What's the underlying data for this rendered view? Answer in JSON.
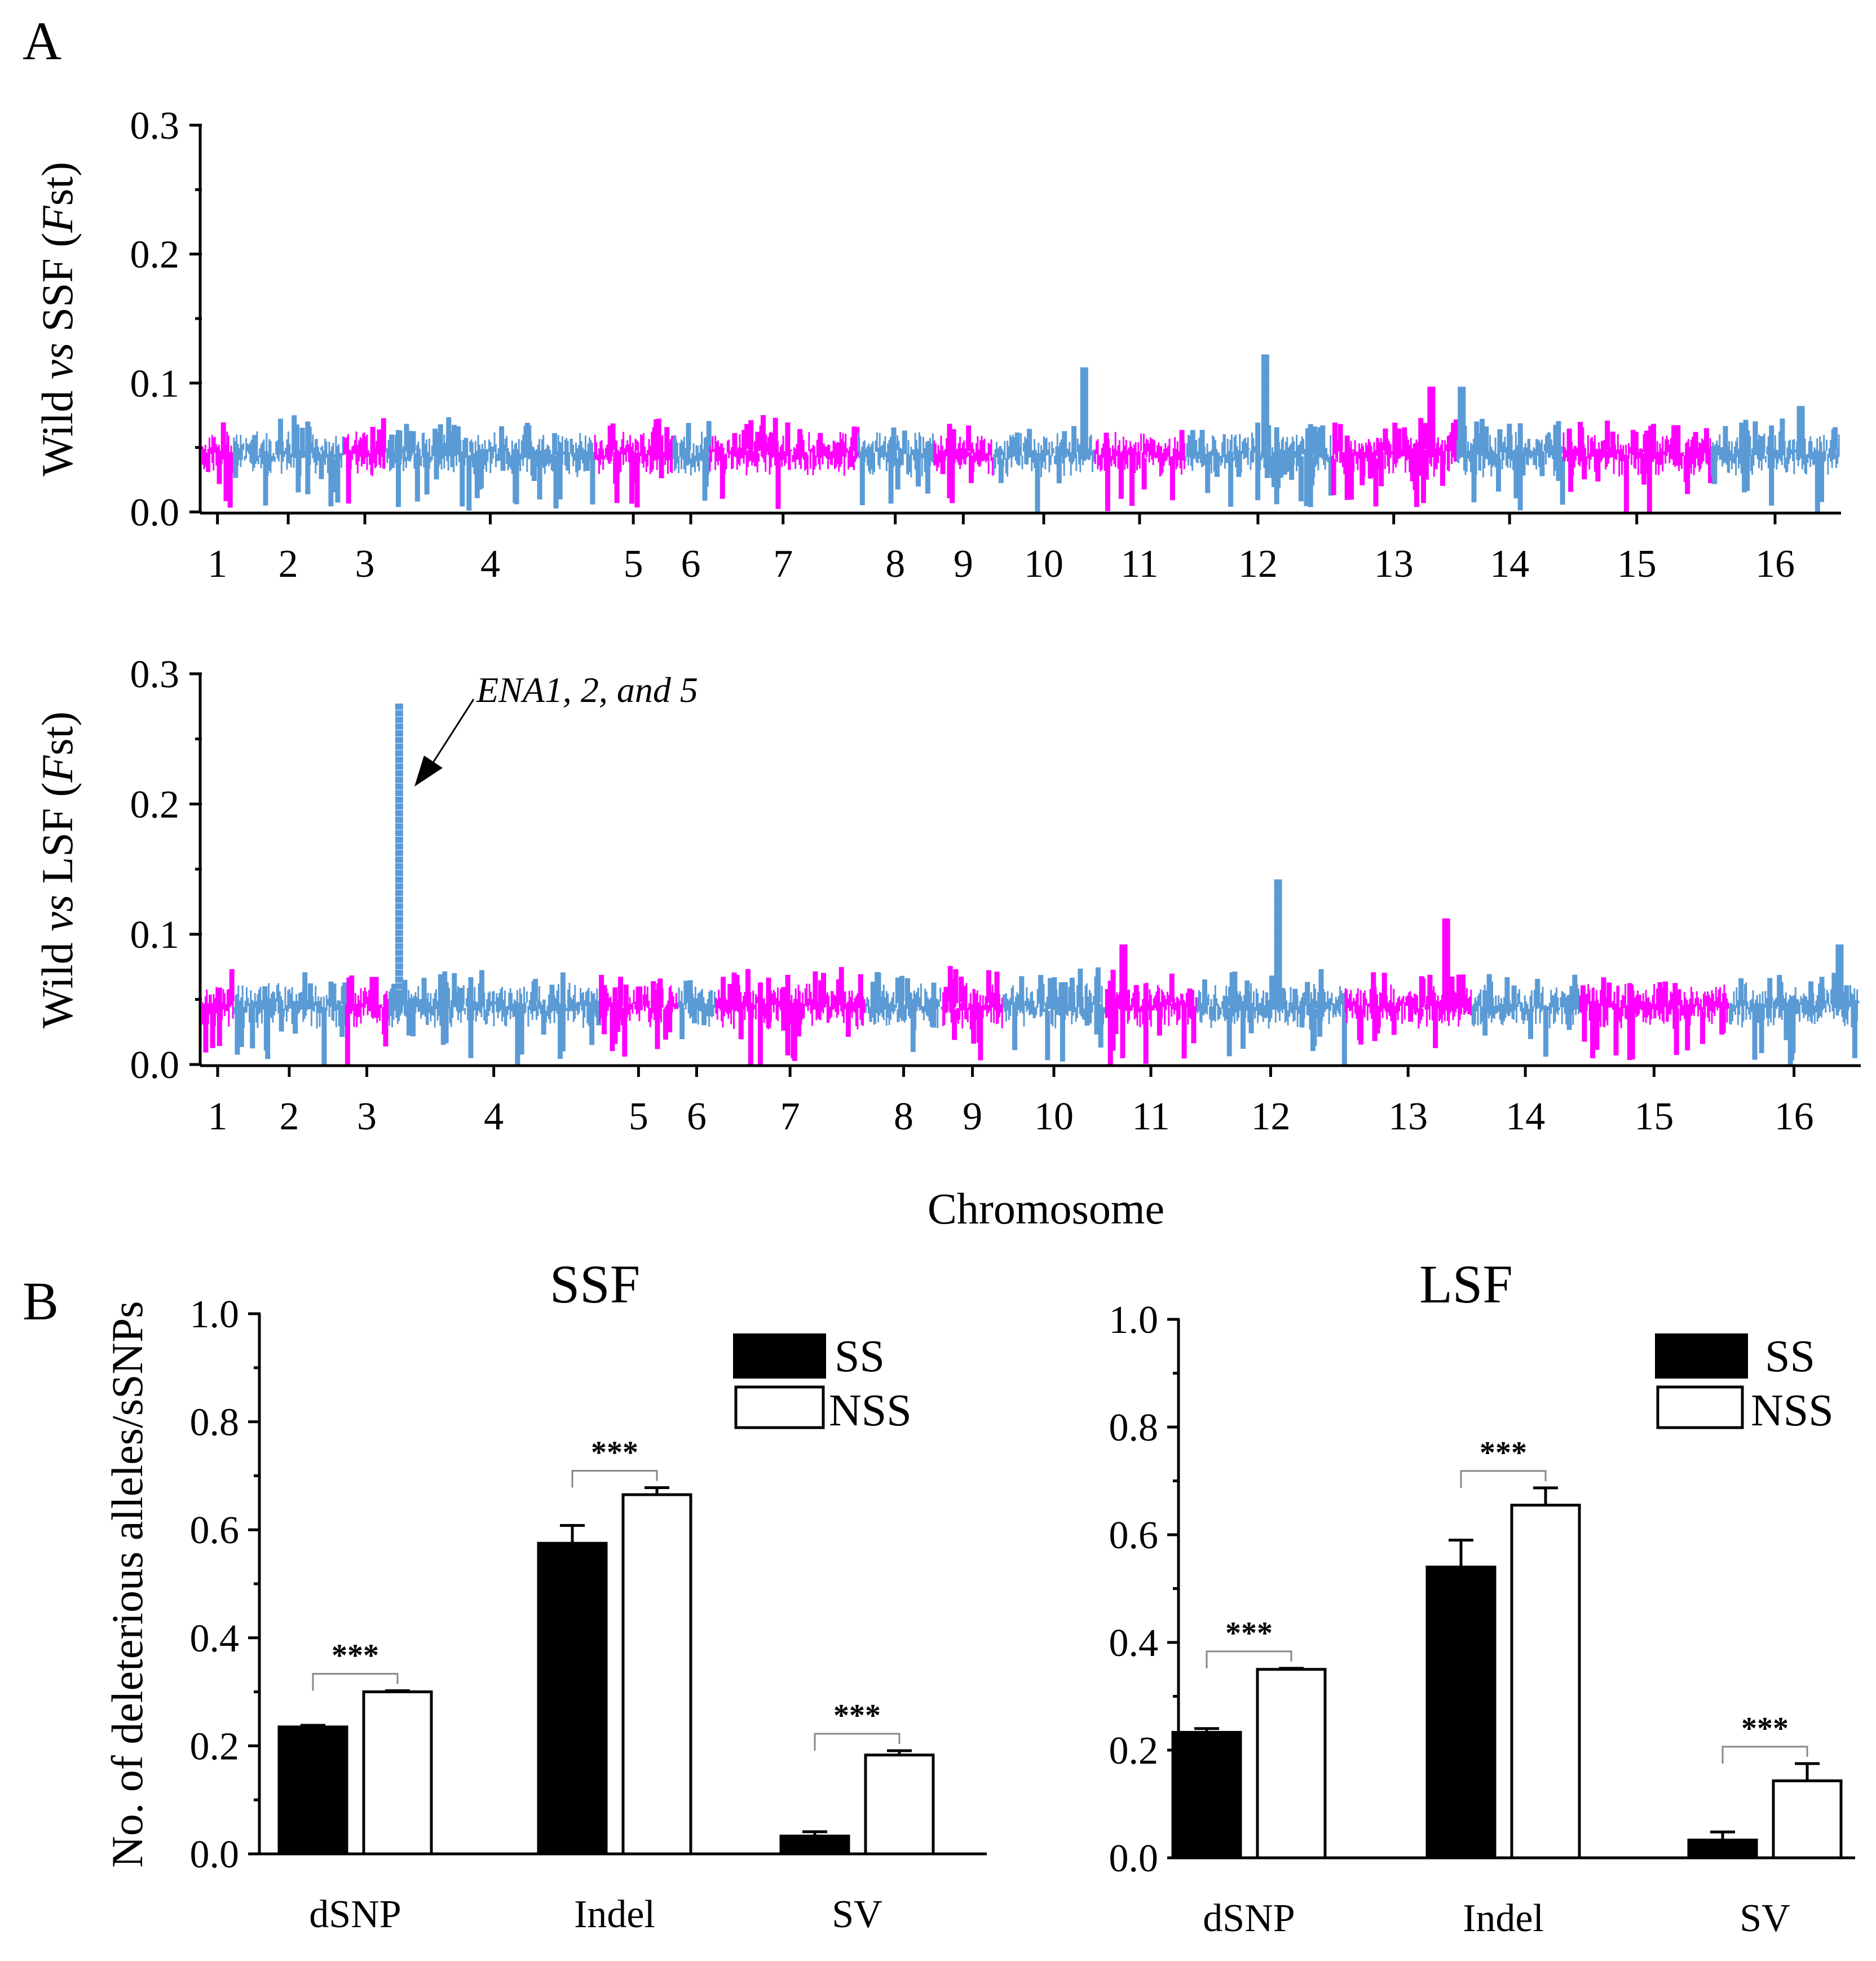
{
  "panel_labels": {
    "a": "A",
    "b": "B"
  },
  "colors": {
    "pink": "#ff00ff",
    "blue": "#5b9bd5",
    "black": "#000000",
    "white": "#ffffff"
  },
  "chart_data": [
    {
      "id": "manhattan_ssf",
      "type": "scatter",
      "title": "",
      "ylabel_parts": [
        "Wild ",
        "vs",
        " SSF (",
        "F",
        "st)"
      ],
      "xlabel": "",
      "ylim": [
        0,
        0.3
      ],
      "yticks": [
        "0.0",
        "0.1",
        "0.2",
        "0.3"
      ],
      "chromosomes": [
        "1",
        "2",
        "3",
        "4",
        "5",
        "6",
        "7",
        "8",
        "9",
        "10",
        "11",
        "12",
        "13",
        "14",
        "15",
        "16"
      ],
      "chrom_lengths": [
        230,
        813,
        317,
        1532,
        577,
        270,
        1091,
        563,
        440,
        746,
        667,
        1078,
        924,
        784,
        1091,
        948
      ],
      "series_colors": [
        "pink",
        "blue",
        "pink",
        "blue",
        "pink",
        "blue",
        "pink",
        "blue",
        "pink",
        "blue",
        "pink",
        "blue",
        "pink",
        "blue",
        "pink",
        "blue"
      ],
      "baseline_fst": 0.045,
      "peaks": [
        {
          "chrom": "10",
          "pos": 0.9,
          "fst": 0.11
        },
        {
          "chrom": "12",
          "pos": 0.55,
          "fst": 0.12
        },
        {
          "chrom": "13",
          "pos": 0.8,
          "fst": 0.095
        },
        {
          "chrom": "14",
          "pos": 0.05,
          "fst": 0.095
        },
        {
          "chrom": "16",
          "pos": 0.7,
          "fst": 0.08
        }
      ]
    },
    {
      "id": "manhattan_lsf",
      "type": "scatter",
      "title": "",
      "ylabel_parts": [
        "Wild ",
        "vs",
        " LSF (",
        "F",
        "st)"
      ],
      "xlabel": "Chromosome",
      "ylim": [
        0,
        0.3
      ],
      "yticks": [
        "0.0",
        "0.1",
        "0.2",
        "0.3"
      ],
      "chromosomes": [
        "1",
        "2",
        "3",
        "4",
        "5",
        "6",
        "7",
        "8",
        "9",
        "10",
        "11",
        "12",
        "13",
        "14",
        "15",
        "16"
      ],
      "chrom_lengths": [
        230,
        813,
        317,
        1532,
        577,
        270,
        1091,
        563,
        440,
        746,
        667,
        1078,
        924,
        784,
        1091,
        948
      ],
      "series_colors": [
        "pink",
        "blue",
        "pink",
        "blue",
        "pink",
        "blue",
        "pink",
        "blue",
        "pink",
        "blue",
        "pink",
        "blue",
        "pink",
        "blue",
        "pink",
        "blue"
      ],
      "baseline_fst": 0.045,
      "peaks": [
        {
          "chrom": "4",
          "pos": 0.05,
          "fst": 0.275
        },
        {
          "chrom": "12",
          "pos": 0.55,
          "fst": 0.14
        },
        {
          "chrom": "13",
          "pos": 0.8,
          "fst": 0.11
        },
        {
          "chrom": "11",
          "pos": 0.2,
          "fst": 0.09
        },
        {
          "chrom": "16",
          "pos": 0.85,
          "fst": 0.09
        }
      ],
      "annotation": "ENA1, 2, and 5"
    },
    {
      "id": "bar_ssf",
      "type": "bar",
      "title": "SSF",
      "xlabel": "",
      "ylabel": "No. of deleterious alleles/sSNPs",
      "ylim": [
        0,
        1.0
      ],
      "yticks": [
        "0.0",
        "0.2",
        "0.4",
        "0.6",
        "0.8",
        "1.0"
      ],
      "categories": [
        "dSNP",
        "Indel",
        "SV"
      ],
      "series": [
        {
          "name": "SS",
          "values": [
            0.235,
            0.575,
            0.033
          ],
          "errors": [
            0.003,
            0.033,
            0.008
          ]
        },
        {
          "name": "NSS",
          "values": [
            0.3,
            0.665,
            0.183
          ],
          "errors": [
            0.002,
            0.013,
            0.008
          ]
        }
      ],
      "significance": [
        "***",
        "***",
        "***"
      ],
      "legend_position": "top-right"
    },
    {
      "id": "bar_lsf",
      "type": "bar",
      "title": "LSF",
      "xlabel": "",
      "ylabel": "",
      "ylim": [
        0,
        1.0
      ],
      "yticks": [
        "0.0",
        "0.2",
        "0.4",
        "0.6",
        "0.8",
        "1.0"
      ],
      "categories": [
        "dSNP",
        "Indel",
        "SV"
      ],
      "series": [
        {
          "name": "SS",
          "values": [
            0.233,
            0.54,
            0.033
          ],
          "errors": [
            0.007,
            0.05,
            0.015
          ]
        },
        {
          "name": "NSS",
          "values": [
            0.35,
            0.655,
            0.143
          ],
          "errors": [
            0.002,
            0.032,
            0.032
          ]
        }
      ],
      "significance": [
        "***",
        "***",
        "***"
      ],
      "legend_position": "top-right"
    }
  ]
}
